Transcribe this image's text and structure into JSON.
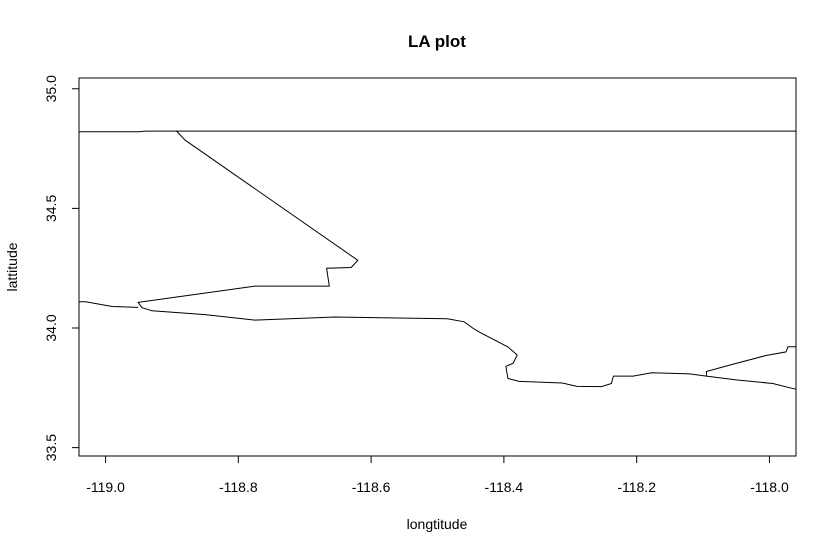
{
  "chart_data": {
    "type": "line",
    "title": "LA plot",
    "xlabel": "longtitude",
    "ylabel": "lattitude",
    "xlim": [
      -119.04,
      -117.96
    ],
    "ylim": [
      33.465,
      35.045
    ],
    "grid": false,
    "x_ticks": [
      -119.0,
      -118.8,
      -118.6,
      -118.4,
      -118.2,
      -118.0
    ],
    "x_tick_labels": [
      "-119.0",
      "-118.8",
      "-118.6",
      "-118.4",
      "-118.2",
      "-118.0"
    ],
    "y_ticks": [
      33.5,
      34.0,
      34.5,
      35.0
    ],
    "y_tick_labels": [
      "33.5",
      "34.0",
      "34.5",
      "35.0"
    ],
    "series": [
      {
        "values": [
          [
            -119.04,
            34.82
          ],
          [
            -118.95,
            34.82
          ],
          [
            -118.94,
            34.823
          ],
          [
            -117.96,
            34.823
          ]
        ]
      },
      {
        "values": [
          [
            -118.893,
            34.823
          ],
          [
            -118.88,
            34.785
          ],
          [
            -118.62,
            34.283
          ],
          [
            -118.63,
            34.253
          ],
          [
            -118.667,
            34.25
          ],
          [
            -118.663,
            34.175
          ],
          [
            -118.775,
            34.175
          ],
          [
            -118.951,
            34.107
          ],
          [
            -118.945,
            34.085
          ],
          [
            -118.93,
            34.072
          ],
          [
            -118.85,
            34.056
          ],
          [
            -118.775,
            34.033
          ],
          [
            -118.655,
            34.046
          ],
          [
            -118.485,
            34.039
          ],
          [
            -118.46,
            34.026
          ],
          [
            -118.447,
            34.0
          ],
          [
            -118.437,
            33.983
          ],
          [
            -118.394,
            33.921
          ],
          [
            -118.38,
            33.887
          ],
          [
            -118.386,
            33.853
          ],
          [
            -118.397,
            33.84
          ],
          [
            -118.394,
            33.789
          ],
          [
            -118.377,
            33.777
          ],
          [
            -118.312,
            33.77
          ],
          [
            -118.29,
            33.756
          ],
          [
            -118.253,
            33.755
          ],
          [
            -118.238,
            33.768
          ],
          [
            -118.235,
            33.799
          ],
          [
            -118.205,
            33.799
          ],
          [
            -118.177,
            33.813
          ],
          [
            -118.12,
            33.808
          ],
          [
            -118.095,
            33.799
          ],
          [
            -118.05,
            33.783
          ],
          [
            -117.995,
            33.768
          ],
          [
            -117.96,
            33.744
          ]
        ]
      },
      {
        "values": [
          [
            -119.04,
            34.11
          ],
          [
            -119.03,
            34.11
          ],
          [
            -118.99,
            34.09
          ],
          [
            -118.951,
            34.086
          ]
        ]
      },
      {
        "values": [
          [
            -118.095,
            33.799
          ],
          [
            -118.095,
            33.818
          ],
          [
            -118.06,
            33.845
          ],
          [
            -118.005,
            33.885
          ],
          [
            -117.975,
            33.9
          ],
          [
            -117.972,
            33.922
          ],
          [
            -117.96,
            33.922
          ]
        ]
      }
    ]
  }
}
